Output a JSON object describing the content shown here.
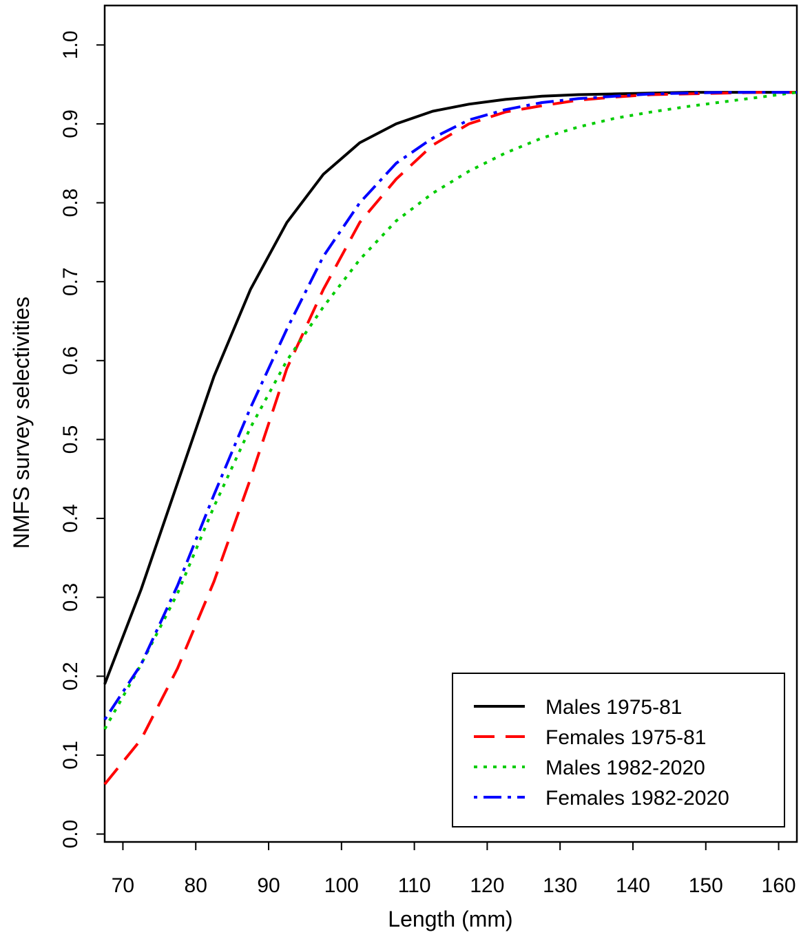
{
  "chart_data": {
    "type": "line",
    "xlabel": "Length (mm)",
    "ylabel": "NMFS survey selectivities",
    "xlim": [
      67.5,
      162.5
    ],
    "ylim": [
      -0.01,
      1.05
    ],
    "xticks": [
      70,
      80,
      90,
      100,
      110,
      120,
      130,
      140,
      150,
      160
    ],
    "xtick_labels": [
      "70",
      "80",
      "90",
      "100",
      "110",
      "120",
      "130",
      "140",
      "150",
      "160"
    ],
    "yticks": [
      0.0,
      0.1,
      0.2,
      0.3,
      0.4,
      0.5,
      0.6,
      0.7,
      0.8,
      0.9,
      1.0
    ],
    "ytick_labels": [
      "0.0",
      "0.1",
      "0.2",
      "0.3",
      "0.4",
      "0.5",
      "0.6",
      "0.7",
      "0.8",
      "0.9",
      "1.0"
    ],
    "grid": false,
    "legend_position": "bottom-right",
    "x": [
      67.5,
      72.5,
      77.5,
      82.5,
      87.5,
      92.5,
      97.5,
      102.5,
      107.5,
      112.5,
      117.5,
      122.5,
      127.5,
      132.5,
      137.5,
      142.5,
      147.5,
      152.5,
      157.5,
      162.5
    ],
    "series": [
      {
        "name": "Males 1975-81",
        "color": "#000000",
        "dash": "solid",
        "values": [
          0.19,
          0.31,
          0.445,
          0.58,
          0.69,
          0.775,
          0.836,
          0.876,
          0.9,
          0.916,
          0.925,
          0.931,
          0.935,
          0.937,
          0.938,
          0.939,
          0.94,
          0.94,
          0.94,
          0.94
        ]
      },
      {
        "name": "Females 1975-81",
        "color": "#ff0000",
        "dash": "dashed",
        "values": [
          0.063,
          0.12,
          0.21,
          0.32,
          0.45,
          0.59,
          0.69,
          0.775,
          0.83,
          0.873,
          0.9,
          0.915,
          0.923,
          0.93,
          0.934,
          0.937,
          0.938,
          0.939,
          0.94,
          0.94
        ]
      },
      {
        "name": "Males 1982-2020",
        "color": "#00cc00",
        "dash": "dotted",
        "values": [
          0.133,
          0.215,
          0.305,
          0.415,
          0.515,
          0.6,
          0.668,
          0.728,
          0.777,
          0.812,
          0.84,
          0.863,
          0.882,
          0.896,
          0.907,
          0.915,
          0.922,
          0.928,
          0.934,
          0.94
        ]
      },
      {
        "name": "Females 1982-2020",
        "color": "#0000ff",
        "dash": "dotdash",
        "values": [
          0.145,
          0.215,
          0.315,
          0.43,
          0.54,
          0.64,
          0.732,
          0.8,
          0.85,
          0.882,
          0.905,
          0.918,
          0.927,
          0.932,
          0.935,
          0.938,
          0.939,
          0.94,
          0.94,
          0.94
        ]
      }
    ]
  }
}
